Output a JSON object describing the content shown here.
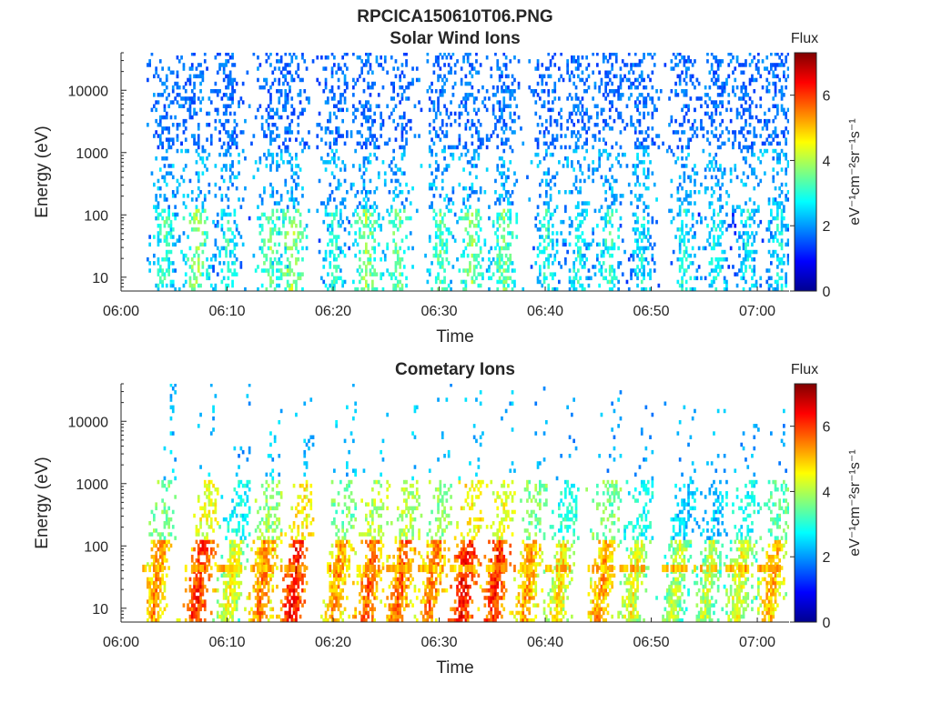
{
  "figure": {
    "title": "RPCICA150610T06.PNG"
  },
  "chart_data": [
    {
      "type": "heatmap",
      "title": "Solar Wind Ions",
      "xlabel": "Time",
      "ylabel": "Energy (eV)",
      "x_tick_labels": [
        "06:00",
        "06:10",
        "06:20",
        "06:30",
        "06:40",
        "06:50",
        "07:00"
      ],
      "xlim": [
        "06:00",
        "07:03"
      ],
      "y_scale": "log",
      "y_tick_values": [
        10,
        100,
        1000,
        10000
      ],
      "y_tick_labels": [
        "10",
        "100",
        "1000",
        "10000"
      ],
      "ylim": [
        6,
        40000
      ],
      "colorbar": {
        "label": "Flux",
        "units": "eV⁻¹cm⁻²sr⁻¹s⁻¹",
        "ticks": [
          0,
          2,
          4,
          6
        ],
        "range": [
          0,
          7.3
        ],
        "colormap": "jet"
      },
      "bursts": [
        {
          "t": "06:04",
          "lo_flux": 3.2,
          "hi_flux": 1.6
        },
        {
          "t": "06:07",
          "lo_flux": 3.8,
          "hi_flux": 1.6
        },
        {
          "t": "06:10",
          "lo_flux": 3.0,
          "hi_flux": 1.6
        },
        {
          "t": "06:14",
          "lo_flux": 3.6,
          "hi_flux": 1.6
        },
        {
          "t": "06:16",
          "lo_flux": 4.0,
          "hi_flux": 1.6
        },
        {
          "t": "06:20",
          "lo_flux": 3.0,
          "hi_flux": 1.6
        },
        {
          "t": "06:23",
          "lo_flux": 3.8,
          "hi_flux": 1.6
        },
        {
          "t": "06:26",
          "lo_flux": 3.6,
          "hi_flux": 1.6
        },
        {
          "t": "06:30",
          "lo_flux": 3.4,
          "hi_flux": 1.6
        },
        {
          "t": "06:33",
          "lo_flux": 3.8,
          "hi_flux": 1.6
        },
        {
          "t": "06:36",
          "lo_flux": 3.6,
          "hi_flux": 1.6
        },
        {
          "t": "06:40",
          "lo_flux": 3.0,
          "hi_flux": 1.6
        },
        {
          "t": "06:43",
          "lo_flux": 3.0,
          "hi_flux": 1.6
        },
        {
          "t": "06:46",
          "lo_flux": 3.2,
          "hi_flux": 1.6
        },
        {
          "t": "06:49",
          "lo_flux": 2.8,
          "hi_flux": 1.6
        },
        {
          "t": "06:53",
          "lo_flux": 3.0,
          "hi_flux": 1.6
        },
        {
          "t": "06:56",
          "lo_flux": 3.0,
          "hi_flux": 1.6
        },
        {
          "t": "06:59",
          "lo_flux": 2.8,
          "hi_flux": 1.6
        },
        {
          "t": "07:02",
          "lo_flux": 2.8,
          "hi_flux": 1.6
        }
      ]
    },
    {
      "type": "heatmap",
      "title": "Cometary Ions",
      "xlabel": "Time",
      "ylabel": "Energy (eV)",
      "x_tick_labels": [
        "06:00",
        "06:10",
        "06:20",
        "06:30",
        "06:40",
        "06:50",
        "07:00"
      ],
      "xlim": [
        "06:00",
        "07:03"
      ],
      "y_scale": "log",
      "y_tick_values": [
        10,
        100,
        1000,
        10000
      ],
      "y_tick_labels": [
        "10",
        "100",
        "1000",
        "10000"
      ],
      "ylim": [
        6,
        40000
      ],
      "colorbar": {
        "label": "Flux",
        "units": "eV⁻¹cm⁻²sr⁻¹s⁻¹",
        "ticks": [
          0,
          2,
          4,
          6
        ],
        "range": [
          0,
          7.3
        ],
        "colormap": "jet"
      },
      "bursts": [
        {
          "t": "06:03",
          "lo_flux": 5.4,
          "hi_flux": 2.2
        },
        {
          "t": "06:07",
          "lo_flux": 6.2,
          "hi_flux": 2.2
        },
        {
          "t": "06:10",
          "lo_flux": 4.6,
          "hi_flux": 2.0
        },
        {
          "t": "06:13",
          "lo_flux": 5.6,
          "hi_flux": 2.2
        },
        {
          "t": "06:16",
          "lo_flux": 6.4,
          "hi_flux": 2.2
        },
        {
          "t": "06:20",
          "lo_flux": 5.4,
          "hi_flux": 2.2
        },
        {
          "t": "06:23",
          "lo_flux": 5.8,
          "hi_flux": 2.2
        },
        {
          "t": "06:26",
          "lo_flux": 5.8,
          "hi_flux": 2.2
        },
        {
          "t": "06:29",
          "lo_flux": 5.6,
          "hi_flux": 2.2
        },
        {
          "t": "06:32",
          "lo_flux": 6.4,
          "hi_flux": 2.2
        },
        {
          "t": "06:35",
          "lo_flux": 6.2,
          "hi_flux": 2.2
        },
        {
          "t": "06:38",
          "lo_flux": 5.4,
          "hi_flux": 2.0
        },
        {
          "t": "06:41",
          "lo_flux": 4.8,
          "hi_flux": 2.0
        },
        {
          "t": "06:45",
          "lo_flux": 5.4,
          "hi_flux": 2.0
        },
        {
          "t": "06:48",
          "lo_flux": 4.6,
          "hi_flux": 2.0
        },
        {
          "t": "06:52",
          "lo_flux": 4.2,
          "hi_flux": 2.0
        },
        {
          "t": "06:55",
          "lo_flux": 4.2,
          "hi_flux": 2.0
        },
        {
          "t": "06:58",
          "lo_flux": 4.6,
          "hi_flux": 2.0
        },
        {
          "t": "07:01",
          "lo_flux": 5.2,
          "hi_flux": 2.0
        }
      ]
    }
  ]
}
